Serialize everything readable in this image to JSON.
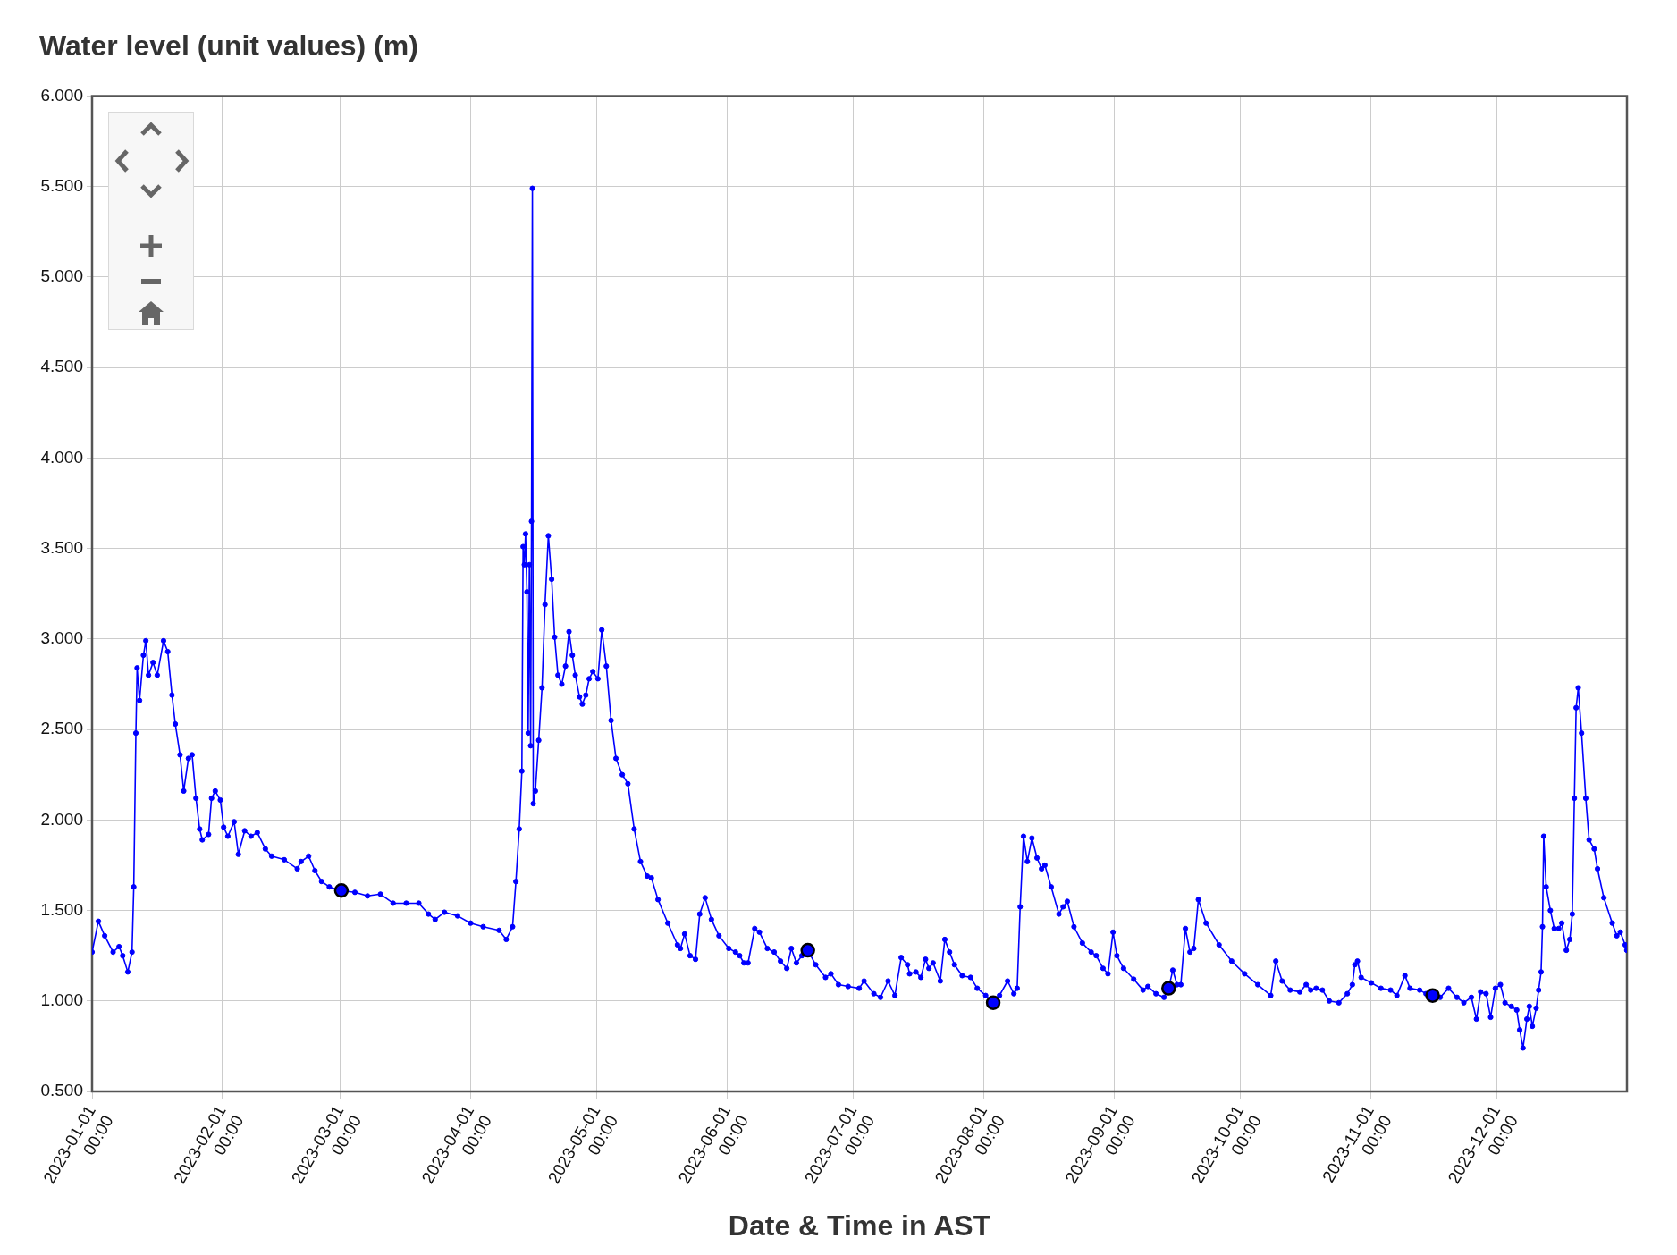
{
  "chart_data": {
    "type": "line",
    "title": "Water level (unit values) (m)",
    "xlabel": "Date & Time in AST",
    "xlim": [
      "2023-01-01",
      "2024-01-01"
    ],
    "xticks": [
      {
        "value": "2023-01-01",
        "label": "2023-01-01 00:00"
      },
      {
        "value": "2023-02-01",
        "label": "2023-02-01 00:00"
      },
      {
        "value": "2023-03-01",
        "label": "2023-03-01 00:00"
      },
      {
        "value": "2023-04-01",
        "label": "2023-04-01 00:00"
      },
      {
        "value": "2023-05-01",
        "label": "2023-05-01 00:00"
      },
      {
        "value": "2023-06-01",
        "label": "2023-06-01 00:00"
      },
      {
        "value": "2023-07-01",
        "label": "2023-07-01 00:00"
      },
      {
        "value": "2023-08-01",
        "label": "2023-08-01 00:00"
      },
      {
        "value": "2023-09-01",
        "label": "2023-09-01 00:00"
      },
      {
        "value": "2023-10-01",
        "label": "2023-10-01 00:00"
      },
      {
        "value": "2023-11-01",
        "label": "2023-11-01 00:00"
      },
      {
        "value": "2023-12-01",
        "label": "2023-12-01 00:00"
      }
    ],
    "ylim": [
      0.5,
      6
    ],
    "yticks": [
      {
        "value": 0.5,
        "label": "0.500"
      },
      {
        "value": 1,
        "label": "1.000"
      },
      {
        "value": 1.5,
        "label": "1.500"
      },
      {
        "value": 2,
        "label": "2.000"
      },
      {
        "value": 2.5,
        "label": "2.500"
      },
      {
        "value": 3,
        "label": "3.000"
      },
      {
        "value": 3.5,
        "label": "3.500"
      },
      {
        "value": 4,
        "label": "4.000"
      },
      {
        "value": 4.5,
        "label": "4.500"
      },
      {
        "value": 5,
        "label": "5.000"
      },
      {
        "value": 5.5,
        "label": "5.500"
      },
      {
        "value": 6,
        "label": "6.000"
      }
    ],
    "grid": true,
    "series": [
      {
        "type": "line",
        "color": "#0000ff",
        "marker": "circle",
        "x": [
          "2023-01-01T00:00",
          "2023-01-02T12:00",
          "2023-01-04T00:00",
          "2023-01-06T00:00",
          "2023-01-07T10:00",
          "2023-01-08T07:00",
          "2023-01-09T12:00",
          "2023-01-10T12:00",
          "2023-01-10T22:00",
          "2023-01-11T10:00",
          "2023-01-11T17:00",
          "2023-01-12T07:00",
          "2023-01-13T05:00",
          "2023-01-13T19:00",
          "2023-01-14T10:00",
          "2023-01-15T12:00",
          "2023-01-16T12:00",
          "2023-01-18T00:00",
          "2023-01-19T00:00",
          "2023-01-20T00:00",
          "2023-01-20T19:00",
          "2023-01-21T22:00",
          "2023-01-22T19:00",
          "2023-01-23T22:00",
          "2023-01-24T19:00",
          "2023-01-25T17:00",
          "2023-01-26T14:00",
          "2023-01-27T05:00",
          "2023-01-28T17:00",
          "2023-01-29T10:00",
          "2023-01-30T07:00",
          "2023-01-31T12:00",
          "2023-02-01T07:00",
          "2023-02-02T07:00",
          "2023-02-03T19:00",
          "2023-02-04T19:00",
          "2023-02-06T07:00",
          "2023-02-07T19:00",
          "2023-02-09T07:00",
          "2023-02-11T05:00",
          "2023-02-12T17:00",
          "2023-02-15T17:00",
          "2023-02-18T19:00",
          "2023-02-19T17:00",
          "2023-02-21T12:00",
          "2023-02-23T00:00",
          "2023-02-24T14:00",
          "2023-02-26T10:00",
          "2023-03-01T02:00",
          "2023-03-04T12:00",
          "2023-03-07T12:00",
          "2023-03-10T14:00",
          "2023-03-13T14:00",
          "2023-03-16T17:00",
          "2023-03-19T17:00",
          "2023-03-22T00:00",
          "2023-03-23T14:00",
          "2023-03-25T19:00",
          "2023-03-28T22:00",
          "2023-04-01T00:00",
          "2023-04-04T00:00",
          "2023-04-07T19:00",
          "2023-04-09T12:00",
          "2023-04-11T00:00",
          "2023-04-11T19:00",
          "2023-04-12T14:00",
          "2023-04-13T05:00",
          "2023-04-13T12:00",
          "2023-04-13T19:00",
          "2023-04-14T02:00",
          "2023-04-14T10:00",
          "2023-04-14T17:00",
          "2023-04-15T00:00",
          "2023-04-15T07:00",
          "2023-04-15T12:00",
          "2023-04-15T17:00",
          "2023-04-15T22:00",
          "2023-04-16T10:00",
          "2023-04-17T05:00",
          "2023-04-18T00:00",
          "2023-04-18T17:00",
          "2023-04-19T12:00",
          "2023-04-20T07:00",
          "2023-04-21T00:00",
          "2023-04-21T19:00",
          "2023-04-22T17:00",
          "2023-04-23T14:00",
          "2023-04-24T10:00",
          "2023-04-25T05:00",
          "2023-04-25T22:00",
          "2023-04-26T22:00",
          "2023-04-27T14:00",
          "2023-04-28T10:00",
          "2023-04-29T05:00",
          "2023-04-30T02:00",
          "2023-05-01T07:00",
          "2023-05-02T05:00",
          "2023-05-03T07:00",
          "2023-05-04T10:00",
          "2023-05-05T14:00",
          "2023-05-07T02:00",
          "2023-05-08T10:00",
          "2023-05-09T22:00",
          "2023-05-11T10:00",
          "2023-05-13T00:00",
          "2023-05-14T00:00",
          "2023-05-15T14:00",
          "2023-05-17T22:00",
          "2023-05-20T05:00",
          "2023-05-20T22:00",
          "2023-05-21T22:00",
          "2023-05-23T05:00",
          "2023-05-24T12:00",
          "2023-05-25T12:00",
          "2023-05-26T19:00",
          "2023-05-28T07:00",
          "2023-05-30T02:00",
          "2023-06-01T10:00",
          "2023-06-03T00:00",
          "2023-06-04T00:00",
          "2023-06-05T00:00",
          "2023-06-06T00:00",
          "2023-06-07T14:00",
          "2023-06-08T17:00",
          "2023-06-10T14:00",
          "2023-06-12T05:00",
          "2023-06-13T17:00",
          "2023-06-15T05:00",
          "2023-06-16T07:00",
          "2023-06-17T12:00",
          "2023-06-18T19:00",
          "2023-06-20T05:00",
          "2023-06-22T02:00",
          "2023-06-24T10:00",
          "2023-06-25T17:00",
          "2023-06-27T12:00",
          "2023-06-29T19:00",
          "2023-07-02T10:00",
          "2023-07-03T14:00",
          "2023-07-05T22:00",
          "2023-07-07T12:00",
          "2023-07-09T07:00",
          "2023-07-10T22:00",
          "2023-07-12T10:00",
          "2023-07-13T22:00",
          "2023-07-14T10:00",
          "2023-07-15T22:00",
          "2023-07-17T02:00",
          "2023-07-18T05:00",
          "2023-07-19T00:00",
          "2023-07-20T00:00",
          "2023-07-21T17:00",
          "2023-07-22T19:00",
          "2023-07-23T22:00",
          "2023-07-25T02:00",
          "2023-07-26T22:00",
          "2023-07-28T22:00",
          "2023-07-30T12:00",
          "2023-08-01T12:00",
          "2023-08-03T07:00",
          "2023-08-04T19:00",
          "2023-08-06T17:00",
          "2023-08-08T05:00",
          "2023-08-09T00:00",
          "2023-08-09T17:00",
          "2023-08-10T12:00",
          "2023-08-11T10:00",
          "2023-08-12T12:00",
          "2023-08-13T17:00",
          "2023-08-14T19:00",
          "2023-08-15T14:00",
          "2023-08-17T02:00",
          "2023-08-18T22:00",
          "2023-08-19T22:00",
          "2023-08-20T22:00",
          "2023-08-22T12:00",
          "2023-08-24T12:00",
          "2023-08-26T14:00",
          "2023-08-27T19:00",
          "2023-08-29T10:00",
          "2023-08-30T14:00",
          "2023-08-31T19:00",
          "2023-09-01T17:00",
          "2023-09-03T07:00",
          "2023-09-05T17:00",
          "2023-09-07T22:00",
          "2023-09-09T02:00",
          "2023-09-11T00:00",
          "2023-09-12T22:00",
          "2023-09-14T00:00",
          "2023-09-15T00:00",
          "2023-09-16T00:00",
          "2023-09-16T22:00",
          "2023-09-18T00:00",
          "2023-09-19T02:00",
          "2023-09-20T00:00",
          "2023-09-21T02:00",
          "2023-09-22T22:00",
          "2023-09-26T00:00",
          "2023-09-29T00:00",
          "2023-10-02T02:00",
          "2023-10-05T05:00",
          "2023-10-08T07:00",
          "2023-10-09T12:00",
          "2023-10-11T00:00",
          "2023-10-12T22:00",
          "2023-10-15T05:00",
          "2023-10-16T17:00",
          "2023-10-17T19:00",
          "2023-10-19T02:00",
          "2023-10-20T14:00",
          "2023-10-22T05:00",
          "2023-10-24T12:00",
          "2023-10-26T12:00",
          "2023-10-27T17:00",
          "2023-10-28T07:00",
          "2023-10-28T22:00",
          "2023-10-29T19:00",
          "2023-11-01T05:00",
          "2023-11-03T12:00",
          "2023-11-05T19:00",
          "2023-11-07T07:00",
          "2023-11-09T05:00",
          "2023-11-10T10:00",
          "2023-11-12T17:00",
          "2023-11-14T05:00",
          "2023-11-15T19:00",
          "2023-11-17T14:00",
          "2023-11-19T14:00",
          "2023-11-21T14:00",
          "2023-11-23T05:00",
          "2023-11-25T00:00",
          "2023-11-26T05:00",
          "2023-11-27T05:00",
          "2023-11-28T12:00",
          "2023-11-29T14:00",
          "2023-11-30T17:00",
          "2023-12-01T22:00",
          "2023-12-03T00:00",
          "2023-12-04T12:00",
          "2023-12-05T19:00",
          "2023-12-06T12:00",
          "2023-12-07T07:00",
          "2023-12-08T05:00",
          "2023-12-08T19:00",
          "2023-12-09T12:00",
          "2023-12-10T10:00",
          "2023-12-11T00:00",
          "2023-12-11T14:00",
          "2023-12-11T22:00",
          "2023-12-12T05:00",
          "2023-12-12T19:00",
          "2023-12-13T19:00",
          "2023-12-14T17:00",
          "2023-12-15T19:00",
          "2023-12-16T12:00",
          "2023-12-17T14:00",
          "2023-12-18T10:00",
          "2023-12-19T00:00",
          "2023-12-19T12:00",
          "2023-12-19T22:00",
          "2023-12-20T10:00",
          "2023-12-21T05:00",
          "2023-12-22T05:00",
          "2023-12-23T00:00",
          "2023-12-24T05:00",
          "2023-12-25T00:00",
          "2023-12-26T12:00",
          "2023-12-28T12:00",
          "2023-12-29T14:00",
          "2023-12-30T10:00",
          "2023-12-31T14:00",
          "2023-12-31T23:00"
        ],
        "values": [
          1.27,
          1.44,
          1.36,
          1.27,
          1.3,
          1.25,
          1.16,
          1.27,
          1.63,
          2.48,
          2.84,
          2.66,
          2.91,
          2.99,
          2.8,
          2.87,
          2.8,
          2.99,
          2.93,
          2.69,
          2.53,
          2.36,
          2.16,
          2.34,
          2.36,
          2.12,
          1.95,
          1.89,
          1.92,
          2.12,
          2.16,
          2.11,
          1.96,
          1.91,
          1.99,
          1.81,
          1.94,
          1.91,
          1.93,
          1.84,
          1.8,
          1.78,
          1.73,
          1.77,
          1.8,
          1.72,
          1.66,
          1.63,
          1.61,
          1.6,
          1.58,
          1.59,
          1.54,
          1.54,
          1.54,
          1.48,
          1.45,
          1.49,
          1.47,
          1.43,
          1.41,
          1.39,
          1.34,
          1.41,
          1.66,
          1.95,
          2.27,
          3.51,
          3.41,
          3.58,
          3.26,
          2.48,
          3.41,
          2.41,
          3.65,
          5.49,
          2.09,
          2.16,
          2.44,
          2.73,
          3.19,
          3.57,
          3.33,
          3.01,
          2.8,
          2.75,
          2.85,
          3.04,
          2.91,
          2.8,
          2.68,
          2.64,
          2.69,
          2.78,
          2.82,
          2.78,
          3.05,
          2.85,
          2.55,
          2.34,
          2.25,
          2.2,
          1.95,
          1.77,
          1.69,
          1.68,
          1.56,
          1.43,
          1.31,
          1.29,
          1.37,
          1.25,
          1.23,
          1.48,
          1.57,
          1.45,
          1.36,
          1.29,
          1.27,
          1.25,
          1.21,
          1.21,
          1.4,
          1.38,
          1.29,
          1.27,
          1.22,
          1.18,
          1.29,
          1.21,
          1.25,
          1.28,
          1.2,
          1.13,
          1.15,
          1.09,
          1.08,
          1.07,
          1.11,
          1.04,
          1.02,
          1.11,
          1.03,
          1.24,
          1.2,
          1.15,
          1.16,
          1.13,
          1.23,
          1.18,
          1.21,
          1.11,
          1.34,
          1.27,
          1.2,
          1.14,
          1.13,
          1.07,
          1.03,
          0.99,
          1.03,
          1.11,
          1.04,
          1.07,
          1.52,
          1.91,
          1.77,
          1.9,
          1.79,
          1.73,
          1.75,
          1.63,
          1.48,
          1.52,
          1.55,
          1.41,
          1.32,
          1.27,
          1.25,
          1.18,
          1.15,
          1.38,
          1.25,
          1.18,
          1.12,
          1.06,
          1.08,
          1.04,
          1.02,
          1.07,
          1.17,
          1.09,
          1.09,
          1.4,
          1.27,
          1.29,
          1.56,
          1.43,
          1.31,
          1.22,
          1.15,
          1.09,
          1.03,
          1.22,
          1.11,
          1.06,
          1.05,
          1.09,
          1.06,
          1.07,
          1.06,
          1.0,
          0.99,
          1.04,
          1.09,
          1.2,
          1.22,
          1.13,
          1.1,
          1.07,
          1.06,
          1.03,
          1.14,
          1.07,
          1.06,
          1.04,
          1.03,
          1.02,
          1.07,
          1.02,
          0.99,
          1.02,
          0.9,
          1.05,
          1.04,
          0.91,
          1.07,
          1.09,
          0.99,
          0.97,
          0.95,
          0.84,
          0.74,
          0.9,
          0.97,
          0.86,
          0.96,
          1.06,
          1.16,
          1.41,
          1.91,
          1.63,
          1.5,
          1.4,
          1.4,
          1.43,
          1.28,
          1.34,
          1.48,
          2.12,
          2.62,
          2.73,
          2.48,
          2.12,
          1.89,
          1.84,
          1.73,
          1.57,
          1.43,
          1.36,
          1.38,
          1.31,
          1.28
        ]
      },
      {
        "type": "scatter",
        "color": "#0000ff",
        "marker": "circle",
        "x": [
          "2023-03-01T07:00",
          "2023-06-20T05:00",
          "2023-08-03T07:00",
          "2023-09-14T00:00",
          "2023-11-15T19:00"
        ],
        "values": [
          1.61,
          1.28,
          0.99,
          1.07,
          1.03
        ]
      }
    ]
  }
}
